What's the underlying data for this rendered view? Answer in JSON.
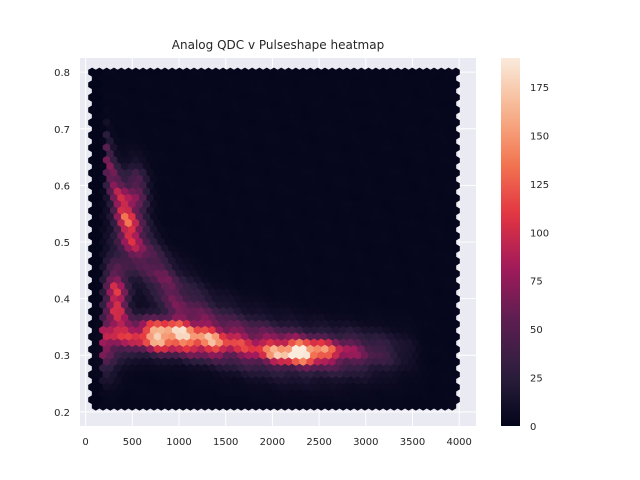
{
  "chart_data": {
    "type": "heatmap",
    "subtype": "hexbin",
    "title": "Analog QDC v Pulseshape heatmap",
    "xlabel": "",
    "ylabel": "",
    "xlim": [
      -60,
      4180
    ],
    "ylim": [
      0.175,
      0.825
    ],
    "xticks": [
      0,
      500,
      1000,
      1500,
      2000,
      2500,
      3000,
      3500,
      4000
    ],
    "yticks": [
      0.2,
      0.3,
      0.4,
      0.5,
      0.6,
      0.7,
      0.8
    ],
    "ytick_labels": [
      "0.2",
      "0.3",
      "0.4",
      "0.5",
      "0.6",
      "0.7",
      "0.8"
    ],
    "data_extent": {
      "x": [
        70,
        4000
      ],
      "y": [
        0.2,
        0.8
      ]
    },
    "colorbar": {
      "range": [
        0,
        190
      ],
      "ticks": [
        0,
        25,
        50,
        75,
        100,
        125,
        150,
        175
      ],
      "colormap": "rocket",
      "colors": [
        "#03051a",
        "#2d1e3e",
        "#5b1e51",
        "#a11a5b",
        "#e13342",
        "#f37651",
        "#f6b48f",
        "#faebdd"
      ]
    },
    "background": "#eaeaf2",
    "grid": true,
    "hotspots": [
      {
        "x": 850,
        "y": 0.33,
        "count": 190
      },
      {
        "x": 2300,
        "y": 0.305,
        "count": 180
      },
      {
        "x": 300,
        "y": 0.4,
        "count": 150
      },
      {
        "x": 450,
        "y": 0.53,
        "count": 120
      },
      {
        "x": 550,
        "y": 0.59,
        "count": 110
      },
      {
        "x": 1300,
        "y": 0.32,
        "count": 110
      }
    ]
  }
}
